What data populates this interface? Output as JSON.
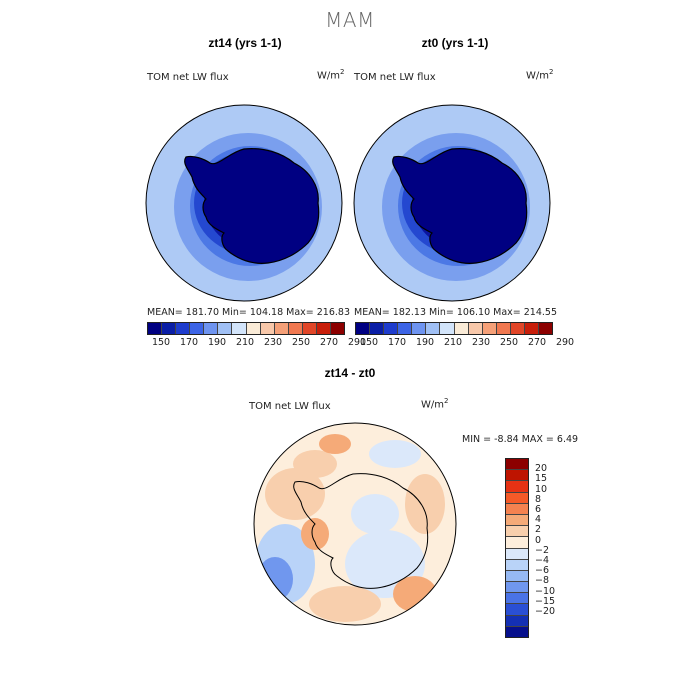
{
  "figure": {
    "title": "MAM"
  },
  "panels": [
    {
      "title": "zt14 (yrs 1-1)",
      "field_label": "TOM net LW flux",
      "units": "W/m",
      "units_exp": "2",
      "stats": "MEAN=  181.70   Min=  104.18   Max=  216.83"
    },
    {
      "title": "zt0 (yrs 1-1)",
      "field_label": "TOM net LW flux",
      "units": "W/m",
      "units_exp": "2",
      "stats": "MEAN=  182.13   Min=  106.10   Max=  214.55"
    },
    {
      "title": "zt14 - zt0",
      "field_label": "TOM net LW flux",
      "units": "W/m",
      "units_exp": "2",
      "stats": "MIN =    -8.84  MAX =    6.49"
    }
  ],
  "abs_colorbar": {
    "colors": [
      "#000082",
      "#0a1ea6",
      "#1e3ccd",
      "#3c64e6",
      "#6e94f0",
      "#a0c0f5",
      "#d2e4fa",
      "#faebd7",
      "#f8c8aa",
      "#f5a078",
      "#f07850",
      "#e14628",
      "#c81e0a",
      "#8c0000"
    ],
    "tick_labels": [
      "150",
      "170",
      "190",
      "210",
      "230",
      "250",
      "270",
      "290"
    ]
  },
  "diff_colorbar": {
    "colors": [
      "#8c0000",
      "#be1400",
      "#e63214",
      "#f55a28",
      "#f58250",
      "#f5aa78",
      "#f8cfad",
      "#fdeedc",
      "#dbe8fa",
      "#b9d3f8",
      "#96b9f3",
      "#7097ee",
      "#4a73e6",
      "#2a4fd4",
      "#1430b4",
      "#060f8c"
    ],
    "tick_labels": [
      "20",
      "15",
      "10",
      "8",
      "6",
      "4",
      "2",
      "0",
      "−2",
      "−4",
      "−6",
      "−8",
      "−10",
      "−15",
      "−20"
    ]
  },
  "chart_data": [
    {
      "type": "heatmap",
      "title": "zt14 (yrs 1-1)",
      "variable": "TOM net LW flux",
      "units": "W/m2",
      "projection": "south polar stereographic",
      "mean": 181.7,
      "min": 104.18,
      "max": 216.83,
      "levels": [
        150,
        160,
        170,
        180,
        190,
        200,
        210,
        220,
        230,
        240,
        250,
        260,
        270,
        280,
        290
      ]
    },
    {
      "type": "heatmap",
      "title": "zt0 (yrs 1-1)",
      "variable": "TOM net LW flux",
      "units": "W/m2",
      "projection": "south polar stereographic",
      "mean": 182.13,
      "min": 106.1,
      "max": 214.55,
      "levels": [
        150,
        160,
        170,
        180,
        190,
        200,
        210,
        220,
        230,
        240,
        250,
        260,
        270,
        280,
        290
      ]
    },
    {
      "type": "heatmap",
      "title": "zt14 - zt0",
      "variable": "TOM net LW flux",
      "units": "W/m2",
      "projection": "south polar stereographic",
      "min": -8.84,
      "max": 6.49,
      "levels": [
        -20,
        -15,
        -10,
        -8,
        -6,
        -4,
        -2,
        0,
        2,
        4,
        6,
        8,
        10,
        15,
        20
      ]
    }
  ]
}
